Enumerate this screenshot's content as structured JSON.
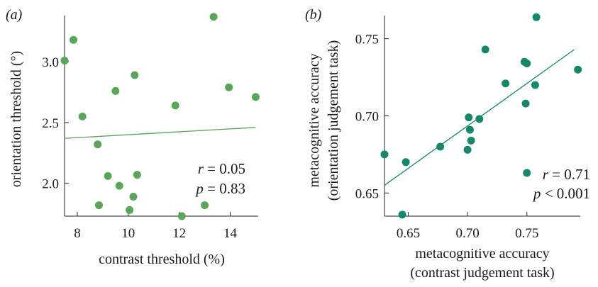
{
  "chart_data": [
    {
      "type": "scatter",
      "panel_label": "(a)",
      "xlabel": "contrast threshold (%)",
      "ylabel": "orientation threshold (°)",
      "xlim": [
        7.5,
        15.1
      ],
      "ylim": [
        1.73,
        3.38
      ],
      "xticks": [
        8,
        10,
        12,
        14
      ],
      "yticks": [
        2.0,
        2.5,
        3.0
      ],
      "xtick_labels": [
        "8",
        "10",
        "12",
        "14"
      ],
      "ytick_labels": [
        "2.0",
        "2.5",
        "3.0"
      ],
      "point_color": "#5aa55a",
      "line_color": "#5aa55a",
      "points": [
        {
          "x": 7.5,
          "y": 3.01
        },
        {
          "x": 7.85,
          "y": 3.18
        },
        {
          "x": 8.2,
          "y": 2.55
        },
        {
          "x": 8.8,
          "y": 2.32
        },
        {
          "x": 8.85,
          "y": 1.82
        },
        {
          "x": 9.2,
          "y": 2.06
        },
        {
          "x": 9.5,
          "y": 2.76
        },
        {
          "x": 9.65,
          "y": 1.98
        },
        {
          "x": 10.05,
          "y": 1.78
        },
        {
          "x": 10.2,
          "y": 1.89
        },
        {
          "x": 10.25,
          "y": 2.89
        },
        {
          "x": 10.35,
          "y": 2.07
        },
        {
          "x": 11.85,
          "y": 2.64
        },
        {
          "x": 12.1,
          "y": 1.73
        },
        {
          "x": 13.0,
          "y": 1.82
        },
        {
          "x": 13.35,
          "y": 3.37
        },
        {
          "x": 13.95,
          "y": 2.79
        },
        {
          "x": 15.0,
          "y": 2.71
        }
      ],
      "fit": {
        "x": [
          7.5,
          15.0
        ],
        "y": [
          2.37,
          2.46
        ]
      },
      "stats": {
        "r_label": "r",
        "r_value": " = 0.05",
        "p_label": "p",
        "p_value": " = 0.83"
      }
    },
    {
      "type": "scatter",
      "panel_label": "(b)",
      "xlabel_line1": "metacognitive accuracy",
      "xlabel_line2": "(contrast judgement task)",
      "ylabel_line1": "metacognitive accuracy",
      "ylabel_line2": "(orientation judgement task)",
      "xlim": [
        0.63,
        0.795
      ],
      "ylim": [
        0.635,
        0.765
      ],
      "xticks": [
        0.65,
        0.7,
        0.75
      ],
      "yticks": [
        0.65,
        0.7,
        0.75
      ],
      "xtick_labels": [
        "0.65",
        "0.70",
        "0.75"
      ],
      "ytick_labels": [
        "0.65",
        "0.70",
        "0.75"
      ],
      "point_color": "#17876b",
      "line_color": "#17876b",
      "points": [
        {
          "x": 0.63,
          "y": 0.675
        },
        {
          "x": 0.645,
          "y": 0.636
        },
        {
          "x": 0.648,
          "y": 0.67
        },
        {
          "x": 0.677,
          "y": 0.68
        },
        {
          "x": 0.7,
          "y": 0.678
        },
        {
          "x": 0.701,
          "y": 0.699
        },
        {
          "x": 0.702,
          "y": 0.691
        },
        {
          "x": 0.703,
          "y": 0.684
        },
        {
          "x": 0.71,
          "y": 0.698
        },
        {
          "x": 0.715,
          "y": 0.743
        },
        {
          "x": 0.732,
          "y": 0.721
        },
        {
          "x": 0.748,
          "y": 0.735
        },
        {
          "x": 0.749,
          "y": 0.708
        },
        {
          "x": 0.75,
          "y": 0.734
        },
        {
          "x": 0.757,
          "y": 0.72
        },
        {
          "x": 0.758,
          "y": 0.764
        },
        {
          "x": 0.793,
          "y": 0.73
        }
      ],
      "fit": {
        "x": [
          0.63,
          0.79
        ],
        "y": [
          0.655,
          0.743
        ]
      },
      "legend_marker": {
        "x": 0.75,
        "y": 0.663
      },
      "stats": {
        "r_label": "r",
        "r_value": " = 0.71",
        "p_label": "p",
        "p_value": " < 0.001"
      }
    }
  ]
}
